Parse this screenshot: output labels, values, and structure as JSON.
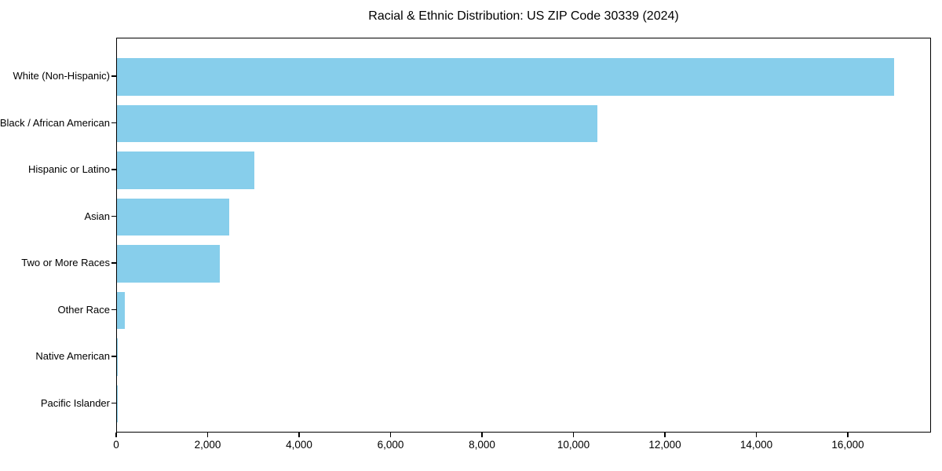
{
  "figure": {
    "title": "Racial & Ethnic Distribution: US ZIP Code 30339 (2024)"
  },
  "chart_data": {
    "type": "bar",
    "orientation": "horizontal",
    "title": "Racial & Ethnic Distribution: US ZIP Code 30339 (2024)",
    "categories": [
      "White (Non-Hispanic)",
      "Black / African American",
      "Hispanic or Latino",
      "Asian",
      "Two or More Races",
      "Other Race",
      "Native American",
      "Pacific Islander"
    ],
    "values": [
      17000,
      10500,
      3000,
      2450,
      2250,
      175,
      25,
      5
    ],
    "xlabel": "",
    "ylabel": "",
    "xlim": [
      0,
      17820
    ],
    "x_ticks": [
      0,
      2000,
      4000,
      6000,
      8000,
      10000,
      12000,
      14000,
      16000
    ],
    "x_tick_labels": [
      "0",
      "2,000",
      "4,000",
      "6,000",
      "8,000",
      "10,000",
      "12,000",
      "14,000",
      "16,000"
    ],
    "bar_color": "#87CEEB",
    "axis_color": "#000000",
    "background": "#FFFFFF",
    "grid": false,
    "legend": false
  }
}
